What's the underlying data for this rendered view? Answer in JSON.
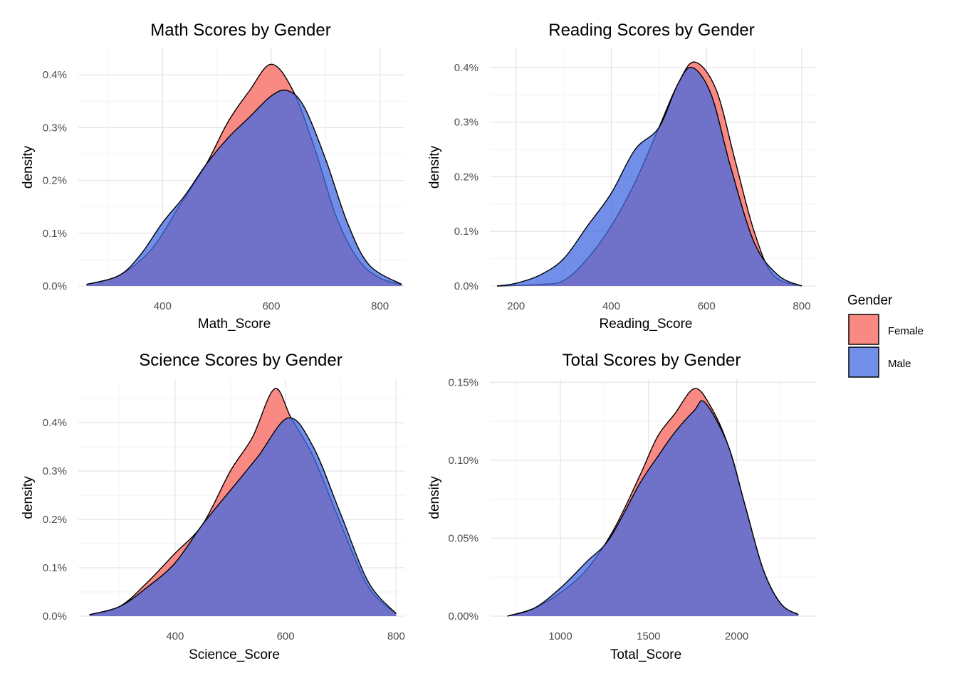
{
  "legend": {
    "title": "Gender",
    "position": "right",
    "entries": [
      {
        "name": "Female",
        "color": "#F8766D"
      },
      {
        "name": "Male",
        "color": "#4169E1"
      }
    ]
  },
  "chart_data": [
    {
      "type": "area",
      "title": "Math Scores by Gender",
      "xlabel": "Math_Score",
      "ylabel": "density",
      "xlim": [
        245,
        845
      ],
      "ylim": [
        0,
        0.0045
      ],
      "xticks": [
        400,
        600,
        800
      ],
      "yticks": [
        0,
        0.001,
        0.002,
        0.003,
        0.004
      ],
      "ytick_labels": [
        "0.0%",
        "0.1%",
        "0.2%",
        "0.3%",
        "0.4%"
      ],
      "grid": true,
      "series": [
        {
          "name": "Female",
          "color": "#F8766D",
          "x": [
            260,
            320,
            380,
            430,
            480,
            520,
            560,
            600,
            640,
            680,
            720,
            760,
            800,
            840
          ],
          "y": [
            3e-05,
            0.0002,
            0.0007,
            0.0015,
            0.0023,
            0.0031,
            0.0037,
            0.0042,
            0.0037,
            0.0026,
            0.0013,
            0.0005,
            0.00015,
            3e-05
          ]
        },
        {
          "name": "Male",
          "color": "#4169E1",
          "x": [
            260,
            320,
            360,
            400,
            440,
            480,
            520,
            560,
            600,
            630,
            660,
            700,
            740,
            780,
            840
          ],
          "y": [
            3e-05,
            0.0002,
            0.0006,
            0.0012,
            0.0017,
            0.0023,
            0.0028,
            0.0032,
            0.0036,
            0.0037,
            0.0034,
            0.0024,
            0.0012,
            0.0004,
            3e-05
          ]
        }
      ]
    },
    {
      "type": "area",
      "title": "Reading Scores by Gender",
      "xlabel": "Reading_Score",
      "ylabel": "density",
      "xlim": [
        145,
        830
      ],
      "ylim": [
        0,
        0.00435
      ],
      "xticks": [
        200,
        400,
        600,
        800
      ],
      "yticks": [
        0,
        0.001,
        0.002,
        0.003,
        0.004
      ],
      "ytick_labels": [
        "0.0%",
        "0.1%",
        "0.2%",
        "0.3%",
        "0.4%"
      ],
      "grid": true,
      "series": [
        {
          "name": "Female",
          "color": "#F8766D",
          "x": [
            160,
            250,
            300,
            350,
            400,
            450,
            500,
            540,
            575,
            620,
            660,
            700,
            740,
            800
          ],
          "y": [
            0,
            3e-05,
            0.0001,
            0.0005,
            0.0011,
            0.0019,
            0.0029,
            0.0037,
            0.0041,
            0.0036,
            0.0023,
            0.001,
            0.0002,
            0
          ]
        },
        {
          "name": "Male",
          "color": "#4169E1",
          "x": [
            160,
            200,
            250,
            300,
            350,
            400,
            450,
            500,
            540,
            570,
            610,
            650,
            700,
            750,
            800
          ],
          "y": [
            0,
            5e-05,
            0.0002,
            0.0005,
            0.0011,
            0.0017,
            0.0025,
            0.0029,
            0.0037,
            0.004,
            0.0035,
            0.0022,
            0.0008,
            0.0002,
            0
          ]
        }
      ]
    },
    {
      "type": "area",
      "title": "Science Scores by Gender",
      "xlabel": "Science_Score",
      "ylabel": "density",
      "xlim": [
        225,
        815
      ],
      "ylim": [
        0,
        0.0049
      ],
      "xticks": [
        400,
        600,
        800
      ],
      "yticks": [
        0,
        0.001,
        0.002,
        0.003,
        0.004
      ],
      "ytick_labels": [
        "0.0%",
        "0.1%",
        "0.2%",
        "0.3%",
        "0.4%"
      ],
      "grid": true,
      "series": [
        {
          "name": "Female",
          "color": "#F8766D",
          "x": [
            245,
            300,
            350,
            400,
            450,
            500,
            540,
            580,
            610,
            650,
            700,
            750,
            800
          ],
          "y": [
            3e-05,
            0.0002,
            0.0007,
            0.0013,
            0.0019,
            0.003,
            0.0037,
            0.0047,
            0.0041,
            0.0033,
            0.0019,
            0.0006,
            5e-05
          ]
        },
        {
          "name": "Male",
          "color": "#4169E1",
          "x": [
            245,
            300,
            350,
            400,
            450,
            500,
            550,
            605,
            650,
            700,
            750,
            800
          ],
          "y": [
            3e-05,
            0.0002,
            0.0006,
            0.0011,
            0.0019,
            0.0026,
            0.0033,
            0.0041,
            0.0035,
            0.0021,
            0.0007,
            5e-05
          ]
        }
      ]
    },
    {
      "type": "area",
      "title": "Total Scores by Gender",
      "xlabel": "Total_Score",
      "ylabel": "density",
      "xlim": [
        600,
        2450
      ],
      "ylim": [
        0,
        0.00152
      ],
      "xticks": [
        1000,
        1500,
        2000
      ],
      "yticks": [
        0,
        0.0005,
        0.001,
        0.0015
      ],
      "ytick_labels": [
        "0.00%",
        "0.05%",
        "0.10%",
        "0.15%"
      ],
      "grid": true,
      "series": [
        {
          "name": "Female",
          "color": "#F8766D",
          "x": [
            700,
            850,
            1000,
            1150,
            1300,
            1450,
            1550,
            1650,
            1760,
            1850,
            1950,
            2050,
            2150,
            2250,
            2350
          ],
          "y": [
            0,
            5e-05,
            0.00015,
            0.0003,
            0.00055,
            0.0009,
            0.00115,
            0.0013,
            0.00146,
            0.00135,
            0.0011,
            0.0007,
            0.0003,
            8e-05,
            1e-05
          ]
        },
        {
          "name": "Male",
          "color": "#4169E1",
          "x": [
            700,
            850,
            1000,
            1150,
            1280,
            1450,
            1550,
            1650,
            1760,
            1820,
            1950,
            2050,
            2150,
            2250,
            2350
          ],
          "y": [
            0,
            5e-05,
            0.00018,
            0.00035,
            0.0005,
            0.00085,
            0.00102,
            0.00118,
            0.00132,
            0.00137,
            0.0011,
            0.0007,
            0.0003,
            8e-05,
            1e-05
          ]
        }
      ]
    }
  ]
}
